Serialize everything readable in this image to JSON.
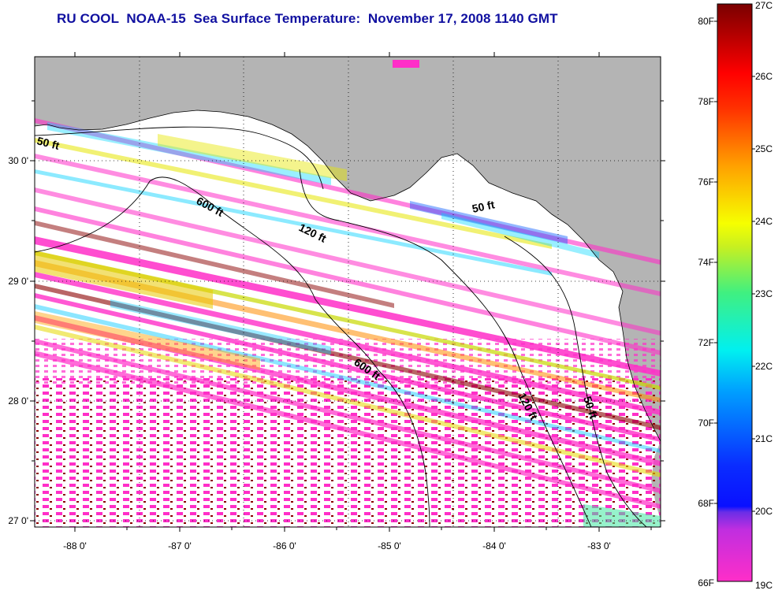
{
  "title": "RU COOL  NOAA-15  Sea Surface Temperature:  November 17, 2008 1140 GMT",
  "map": {
    "longitude_labels": [
      "-88 0'",
      "-87 0'",
      "-86 0'",
      "-85 0'",
      "-84 0'",
      "-83 0'"
    ],
    "latitude_labels": [
      "30 0'",
      "29 0'",
      "28 0'",
      "27 0'"
    ],
    "longitude_range": [
      -88.35,
      -82.4
    ],
    "latitude_range": [
      26.98,
      30.9
    ],
    "land_color": "#b4b4b4",
    "no_data_color": "#ffffff",
    "contour_labels": [
      "50 ft",
      "600 ft",
      "120 ft",
      "50 ft",
      "600 ft",
      "120 ft",
      "50 ft"
    ]
  },
  "colorbar": {
    "fahrenheit_labels": [
      "80F",
      "78F",
      "76F",
      "74F",
      "72F",
      "70F",
      "68F",
      "66F"
    ],
    "celsius_labels": [
      "27C",
      "26C",
      "25C",
      "24C",
      "23C",
      "22C",
      "21C",
      "20C",
      "19C"
    ],
    "range_celsius": [
      19,
      27
    ],
    "range_fahrenheit": [
      66.2,
      80.6
    ],
    "colors": [
      "#ff2ec8",
      "#6a2ee6",
      "#0a2cff",
      "#00e0ff",
      "#40f080",
      "#e6ff00",
      "#ffa000",
      "#ff0000",
      "#800000"
    ]
  }
}
